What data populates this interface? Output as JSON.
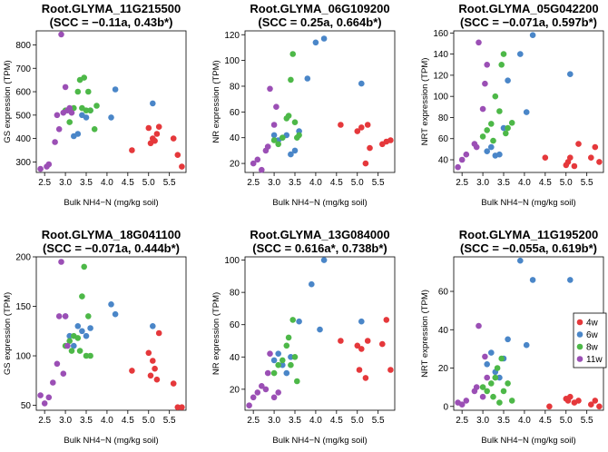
{
  "chart_data": [
    {
      "type": "scatter",
      "title": "Root.GLYMA_11G215500",
      "subtitle": "(SCC = −0.11a, 0.43b*)",
      "xlabel": "Bulk NH4−N (mg/kg soil)",
      "ylabel": "GS expression (TPM)",
      "xlim": [
        2.3,
        5.9
      ],
      "ylim": [
        255,
        860
      ],
      "xticks": [
        "2.5",
        "3.0",
        "3.5",
        "4.0",
        "4.5",
        "5.0",
        "5.5"
      ],
      "yticks": [
        "300",
        "400",
        "500",
        "600",
        "700",
        "800"
      ],
      "series": [
        {
          "name": "4w",
          "x": [
            4.6,
            5.0,
            5.05,
            5.1,
            5.15,
            5.2,
            5.25,
            5.6,
            5.7,
            5.8
          ],
          "y": [
            350,
            445,
            380,
            400,
            390,
            420,
            450,
            400,
            330,
            280
          ]
        },
        {
          "name": "6w",
          "x": [
            3.2,
            3.3,
            3.4,
            3.5,
            3.6,
            4.1,
            4.2,
            5.1
          ],
          "y": [
            410,
            420,
            500,
            490,
            520,
            490,
            610,
            550
          ]
        },
        {
          "name": "8w",
          "x": [
            3.0,
            3.1,
            3.2,
            3.3,
            3.35,
            3.4,
            3.45,
            3.5,
            3.55,
            3.6,
            3.7,
            3.75
          ],
          "y": [
            520,
            470,
            530,
            600,
            650,
            530,
            660,
            520,
            600,
            520,
            440,
            540
          ]
        },
        {
          "name": "11w",
          "x": [
            2.4,
            2.55,
            2.6,
            2.75,
            2.8,
            2.85,
            2.9,
            2.95,
            3.0,
            3.05,
            3.1,
            3.15
          ],
          "y": [
            270,
            280,
            290,
            385,
            500,
            440,
            845,
            510,
            620,
            520,
            530,
            510
          ]
        }
      ]
    },
    {
      "type": "scatter",
      "title": "Root.GLYMA_06G109200",
      "subtitle": "(SCC = 0.25a, 0.664b*)",
      "xlabel": "Bulk NH4−N (mg/kg soil)",
      "ylabel": "NR expression (TPM)",
      "xlim": [
        2.3,
        5.9
      ],
      "ylim": [
        13,
        123
      ],
      "xticks": [
        "2.5",
        "3.0",
        "3.5",
        "4.0",
        "4.5",
        "5.0",
        "5.5"
      ],
      "yticks": [
        "20",
        "40",
        "60",
        "80",
        "100",
        "120"
      ],
      "series": [
        {
          "name": "4w",
          "x": [
            4.6,
            5.0,
            5.1,
            5.2,
            5.25,
            5.3,
            5.6,
            5.7,
            5.8
          ],
          "y": [
            50,
            45,
            48,
            20,
            50,
            32,
            35,
            37,
            38
          ]
        },
        {
          "name": "6w",
          "x": [
            3.0,
            3.1,
            3.2,
            3.3,
            3.4,
            3.5,
            3.6,
            3.8,
            4.0,
            4.2,
            5.1
          ],
          "y": [
            42,
            38,
            40,
            42,
            27,
            30,
            45,
            86,
            114,
            117,
            82
          ]
        },
        {
          "name": "8w",
          "x": [
            3.0,
            3.1,
            3.2,
            3.3,
            3.35,
            3.4,
            3.45,
            3.5,
            3.55,
            3.6
          ],
          "y": [
            38,
            35,
            40,
            55,
            57,
            85,
            105,
            52,
            40,
            42
          ]
        },
        {
          "name": "11w",
          "x": [
            2.5,
            2.6,
            2.7,
            2.8,
            2.85,
            2.9,
            3.0,
            3.05
          ],
          "y": [
            20,
            23,
            15,
            30,
            33,
            78,
            50,
            64
          ]
        }
      ]
    },
    {
      "type": "scatter",
      "title": "Root.GLYMA_05G042200",
      "subtitle": "(SCC = −0.071a, 0.597b*)",
      "xlabel": "Bulk NH4−N (mg/kg soil)",
      "ylabel": "NRT expression (TPM)",
      "xlim": [
        2.3,
        5.9
      ],
      "ylim": [
        28,
        162
      ],
      "xticks": [
        "2.5",
        "3.0",
        "3.5",
        "4.0",
        "4.5",
        "5.0",
        "5.5"
      ],
      "yticks": [
        "40",
        "60",
        "80",
        "100",
        "120",
        "140",
        "160"
      ],
      "series": [
        {
          "name": "4w",
          "x": [
            4.5,
            5.0,
            5.05,
            5.1,
            5.2,
            5.3,
            5.6,
            5.7,
            5.8
          ],
          "y": [
            42,
            35,
            38,
            42,
            34,
            55,
            42,
            52,
            38
          ]
        },
        {
          "name": "6w",
          "x": [
            3.1,
            3.2,
            3.3,
            3.4,
            3.5,
            3.6,
            3.9,
            4.05,
            4.2,
            5.1
          ],
          "y": [
            48,
            52,
            44,
            45,
            70,
            115,
            140,
            85,
            158,
            121
          ]
        },
        {
          "name": "8w",
          "x": [
            3.0,
            3.1,
            3.2,
            3.25,
            3.3,
            3.4,
            3.45,
            3.5,
            3.55,
            3.6,
            3.7
          ],
          "y": [
            62,
            68,
            74,
            58,
            100,
            86,
            130,
            140,
            65,
            70,
            75
          ]
        },
        {
          "name": "11w",
          "x": [
            2.4,
            2.5,
            2.6,
            2.8,
            2.85,
            2.9,
            3.0,
            3.05,
            3.1
          ],
          "y": [
            33,
            40,
            45,
            55,
            52,
            151,
            88,
            112,
            130
          ]
        }
      ]
    },
    {
      "type": "scatter",
      "title": "Root.GLYMA_18G041100",
      "subtitle": "(SCC = −0.071a, 0.444b*)",
      "xlabel": "Bulk NH4−N (mg/kg soil)",
      "ylabel": "GS expression (TPM)",
      "xlim": [
        2.3,
        5.9
      ],
      "ylim": [
        45,
        200
      ],
      "xticks": [
        "2.5",
        "3.0",
        "3.5",
        "4.0",
        "4.5",
        "5.0",
        "5.5"
      ],
      "yticks": [
        "50",
        "100",
        "150",
        "200"
      ],
      "series": [
        {
          "name": "4w",
          "x": [
            4.6,
            5.0,
            5.05,
            5.1,
            5.15,
            5.2,
            5.25,
            5.6,
            5.7,
            5.8
          ],
          "y": [
            85,
            103,
            80,
            95,
            87,
            76,
            123,
            72,
            48,
            48
          ]
        },
        {
          "name": "6w",
          "x": [
            3.0,
            3.1,
            3.2,
            3.3,
            3.4,
            3.5,
            3.6,
            4.1,
            4.2,
            5.1
          ],
          "y": [
            140,
            120,
            110,
            130,
            125,
            120,
            128,
            152,
            142,
            130
          ]
        },
        {
          "name": "8w",
          "x": [
            3.0,
            3.1,
            3.15,
            3.2,
            3.3,
            3.35,
            3.4,
            3.45,
            3.5,
            3.55,
            3.6
          ],
          "y": [
            110,
            115,
            105,
            120,
            118,
            105,
            160,
            190,
            100,
            140,
            100
          ]
        },
        {
          "name": "11w",
          "x": [
            2.4,
            2.5,
            2.6,
            2.7,
            2.8,
            2.85,
            2.9,
            2.95,
            3.0,
            3.05
          ],
          "y": [
            60,
            52,
            58,
            73,
            92,
            140,
            195,
            82,
            140,
            110
          ]
        }
      ]
    },
    {
      "type": "scatter",
      "title": "Root.GLYMA_13G084000",
      "subtitle": "(SCC = 0.616a*, 0.738b*)",
      "xlabel": "Bulk NH4−N (mg/kg soil)",
      "ylabel": "NR expression (TPM)",
      "xlim": [
        2.3,
        5.9
      ],
      "ylim": [
        7,
        102
      ],
      "xticks": [
        "2.5",
        "3.0",
        "3.5",
        "4.0",
        "4.5",
        "5.0",
        "5.5"
      ],
      "yticks": [
        "20",
        "40",
        "60",
        "80",
        "100"
      ],
      "series": [
        {
          "name": "4w",
          "x": [
            4.6,
            5.0,
            5.05,
            5.1,
            5.2,
            5.25,
            5.6,
            5.7,
            5.8
          ],
          "y": [
            50,
            47,
            32,
            45,
            27,
            50,
            48,
            63,
            32
          ]
        },
        {
          "name": "6w",
          "x": [
            3.0,
            3.1,
            3.2,
            3.3,
            3.4,
            3.6,
            3.9,
            4.1,
            4.2,
            5.1
          ],
          "y": [
            38,
            42,
            35,
            30,
            40,
            62,
            85,
            57,
            100,
            62
          ]
        },
        {
          "name": "8w",
          "x": [
            3.0,
            3.1,
            3.2,
            3.3,
            3.35,
            3.4,
            3.45,
            3.5,
            3.55
          ],
          "y": [
            30,
            35,
            38,
            47,
            52,
            35,
            63,
            40,
            25
          ]
        },
        {
          "name": "11w",
          "x": [
            2.4,
            2.5,
            2.6,
            2.7,
            2.8,
            2.85,
            2.9,
            3.0,
            3.1
          ],
          "y": [
            10,
            15,
            18,
            22,
            20,
            30,
            42,
            15,
            18
          ]
        }
      ]
    },
    {
      "type": "scatter",
      "title": "Root.GLYMA_11G195200",
      "subtitle": "(SCC = −0.055a, 0.619b*)",
      "xlabel": "Bulk NH4−N (mg/kg soil)",
      "ylabel": "NRT expression (TPM)",
      "xlim": [
        2.3,
        5.9
      ],
      "ylim": [
        -2,
        78
      ],
      "xticks": [
        "2.5",
        "3.0",
        "3.5",
        "4.0",
        "4.5",
        "5.0",
        "5.5"
      ],
      "yticks": [
        "0",
        "20",
        "40",
        "60"
      ],
      "legend": {
        "position": "right",
        "labels": [
          "4w",
          "6w",
          "8w",
          "11w"
        ]
      },
      "series": [
        {
          "name": "4w",
          "x": [
            4.6,
            5.0,
            5.05,
            5.1,
            5.2,
            5.3,
            5.6,
            5.7,
            5.8
          ],
          "y": [
            0,
            4,
            3,
            5,
            2,
            3,
            1,
            3,
            0
          ]
        },
        {
          "name": "6w",
          "x": [
            3.1,
            3.2,
            3.3,
            3.4,
            3.5,
            3.6,
            3.9,
            4.05,
            4.2,
            5.1
          ],
          "y": [
            22,
            28,
            18,
            15,
            25,
            35,
            76,
            32,
            66,
            66
          ]
        },
        {
          "name": "8w",
          "x": [
            3.0,
            3.1,
            3.2,
            3.25,
            3.3,
            3.35,
            3.4,
            3.45,
            3.5,
            3.6,
            3.7
          ],
          "y": [
            10,
            8,
            12,
            5,
            15,
            20,
            2,
            25,
            8,
            12,
            3
          ]
        },
        {
          "name": "11w",
          "x": [
            2.4,
            2.5,
            2.6,
            2.8,
            2.85,
            2.9,
            3.0,
            3.05,
            3.1
          ],
          "y": [
            2,
            1,
            3,
            8,
            10,
            42,
            5,
            26,
            15
          ]
        }
      ]
    }
  ],
  "colors": {
    "4w": "#E5383B",
    "6w": "#4A86C8",
    "8w": "#4DB848",
    "11w": "#9B4FB5",
    "axis": "#000000",
    "frame": "#000000"
  }
}
